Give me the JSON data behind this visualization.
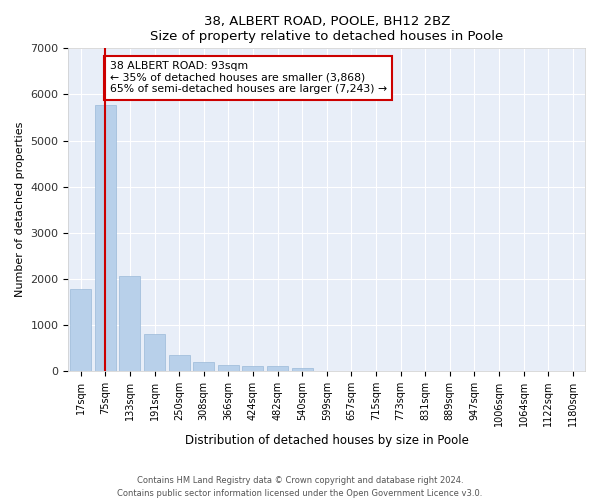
{
  "title1": "38, ALBERT ROAD, POOLE, BH12 2BZ",
  "title2": "Size of property relative to detached houses in Poole",
  "xlabel": "Distribution of detached houses by size in Poole",
  "ylabel": "Number of detached properties",
  "categories": [
    "17sqm",
    "75sqm",
    "133sqm",
    "191sqm",
    "250sqm",
    "308sqm",
    "366sqm",
    "424sqm",
    "482sqm",
    "540sqm",
    "599sqm",
    "657sqm",
    "715sqm",
    "773sqm",
    "831sqm",
    "889sqm",
    "947sqm",
    "1006sqm",
    "1064sqm",
    "1122sqm",
    "1180sqm"
  ],
  "values": [
    1780,
    5780,
    2060,
    810,
    340,
    185,
    120,
    110,
    100,
    70,
    0,
    0,
    0,
    0,
    0,
    0,
    0,
    0,
    0,
    0,
    0
  ],
  "bar_color": "#b8d0ea",
  "bar_edge_color": "#9bbad8",
  "highlight_bar_index": 1,
  "highlight_color": "#cc0000",
  "annotation_text": "38 ALBERT ROAD: 93sqm\n← 35% of detached houses are smaller (3,868)\n65% of semi-detached houses are larger (7,243) →",
  "annotation_box_color": "#ffffff",
  "annotation_box_edge": "#cc0000",
  "ylim": [
    0,
    7000
  ],
  "yticks": [
    0,
    1000,
    2000,
    3000,
    4000,
    5000,
    6000,
    7000
  ],
  "background_color": "#e8eef8",
  "grid_color": "#ffffff",
  "footer1": "Contains HM Land Registry data © Crown copyright and database right 2024.",
  "footer2": "Contains public sector information licensed under the Open Government Licence v3.0."
}
